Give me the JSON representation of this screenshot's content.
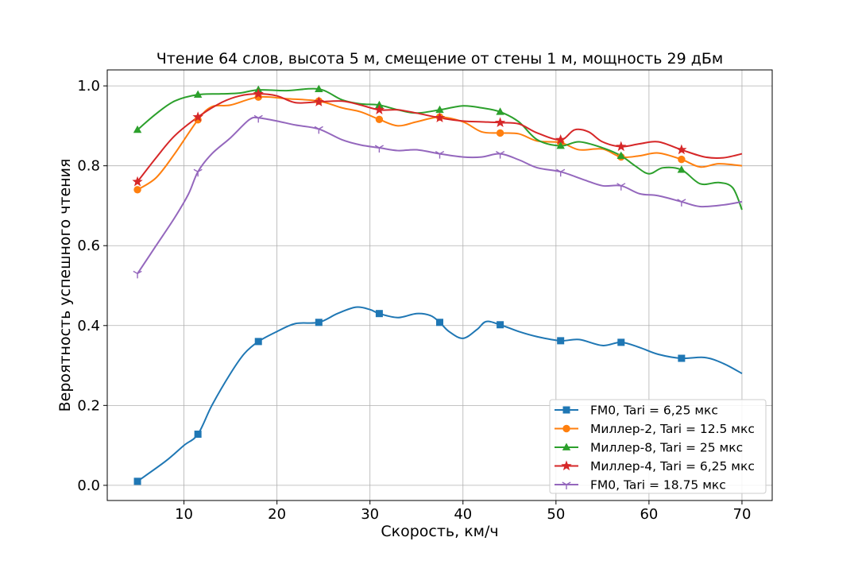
{
  "chart_data": {
    "type": "line",
    "title": "Чтение 64 слов, высота 5 м, смещение от стены 1 м, мощность 29 дБм",
    "xlabel": "Скорость, км/ч",
    "ylabel": "Вероятность успешного чтения",
    "xlim": [
      1.75,
      73.25
    ],
    "ylim": [
      -0.038,
      1.04
    ],
    "xticks": [
      10,
      20,
      30,
      40,
      50,
      60,
      70
    ],
    "yticks": [
      0.0,
      0.2,
      0.4,
      0.6,
      0.8,
      1.0
    ],
    "xtick_labels": [
      "10",
      "20",
      "30",
      "40",
      "50",
      "60",
      "70"
    ],
    "ytick_labels": [
      "0.0",
      "0.2",
      "0.4",
      "0.6",
      "0.8",
      "1.0"
    ],
    "grid": true,
    "legend_position": "lower-right",
    "series": [
      {
        "name": "FM0, Tari = 6,25 мкс",
        "color": "#1f77b4",
        "marker": "square",
        "markers": [
          [
            5,
            0.01
          ],
          [
            11.5,
            0.128
          ],
          [
            18,
            0.36
          ],
          [
            24.5,
            0.408
          ],
          [
            31,
            0.43
          ],
          [
            37.5,
            0.408
          ],
          [
            44,
            0.402
          ],
          [
            50.5,
            0.362
          ],
          [
            57,
            0.358
          ],
          [
            63.5,
            0.318
          ]
        ],
        "curve": [
          [
            5,
            0.01
          ],
          [
            8,
            0.06
          ],
          [
            10,
            0.1
          ],
          [
            11.5,
            0.128
          ],
          [
            13,
            0.2
          ],
          [
            15,
            0.28
          ],
          [
            16.5,
            0.33
          ],
          [
            18,
            0.36
          ],
          [
            20,
            0.385
          ],
          [
            22,
            0.405
          ],
          [
            24.5,
            0.408
          ],
          [
            26.5,
            0.43
          ],
          [
            28.5,
            0.446
          ],
          [
            30,
            0.44
          ],
          [
            31,
            0.43
          ],
          [
            33,
            0.42
          ],
          [
            35,
            0.43
          ],
          [
            36.5,
            0.425
          ],
          [
            37.5,
            0.408
          ],
          [
            38.5,
            0.385
          ],
          [
            40,
            0.368
          ],
          [
            41.5,
            0.39
          ],
          [
            42.5,
            0.41
          ],
          [
            44,
            0.402
          ],
          [
            46,
            0.385
          ],
          [
            48,
            0.372
          ],
          [
            50.5,
            0.362
          ],
          [
            52.5,
            0.365
          ],
          [
            55,
            0.35
          ],
          [
            57,
            0.358
          ],
          [
            59,
            0.345
          ],
          [
            61,
            0.328
          ],
          [
            63.5,
            0.318
          ],
          [
            66,
            0.32
          ],
          [
            68,
            0.305
          ],
          [
            70,
            0.28
          ]
        ]
      },
      {
        "name": "Миллер-2, Tari = 12.5 мкс",
        "color": "#ff7f0e",
        "marker": "circle",
        "markers": [
          [
            5,
            0.74
          ],
          [
            11.5,
            0.915
          ],
          [
            18,
            0.972
          ],
          [
            24.5,
            0.962
          ],
          [
            31,
            0.916
          ],
          [
            37.5,
            0.922
          ],
          [
            44,
            0.882
          ],
          [
            50.5,
            0.858
          ],
          [
            57,
            0.822
          ],
          [
            63.5,
            0.816
          ]
        ],
        "curve": [
          [
            5,
            0.74
          ],
          [
            7,
            0.77
          ],
          [
            9,
            0.83
          ],
          [
            11.5,
            0.915
          ],
          [
            13,
            0.948
          ],
          [
            15,
            0.952
          ],
          [
            18,
            0.972
          ],
          [
            21,
            0.968
          ],
          [
            24.5,
            0.962
          ],
          [
            27,
            0.945
          ],
          [
            29,
            0.935
          ],
          [
            31,
            0.916
          ],
          [
            33,
            0.9
          ],
          [
            35,
            0.91
          ],
          [
            37.5,
            0.922
          ],
          [
            40,
            0.91
          ],
          [
            42,
            0.885
          ],
          [
            44,
            0.882
          ],
          [
            46,
            0.88
          ],
          [
            48,
            0.862
          ],
          [
            50.5,
            0.858
          ],
          [
            52.5,
            0.84
          ],
          [
            55,
            0.842
          ],
          [
            57,
            0.822
          ],
          [
            59,
            0.825
          ],
          [
            61,
            0.832
          ],
          [
            63.5,
            0.816
          ],
          [
            65.5,
            0.797
          ],
          [
            67.5,
            0.805
          ],
          [
            70,
            0.8
          ]
        ]
      },
      {
        "name": "Миллер-8, Tari = 25 мкс",
        "color": "#2ca02c",
        "marker": "triangle",
        "markers": [
          [
            5,
            0.89
          ],
          [
            11.5,
            0.978
          ],
          [
            18,
            0.99
          ],
          [
            24.5,
            0.992
          ],
          [
            31,
            0.952
          ],
          [
            37.5,
            0.94
          ],
          [
            44,
            0.935
          ],
          [
            50.5,
            0.85
          ],
          [
            57,
            0.825
          ],
          [
            63.5,
            0.79
          ]
        ],
        "curve": [
          [
            5,
            0.89
          ],
          [
            7,
            0.93
          ],
          [
            9,
            0.962
          ],
          [
            11.5,
            0.978
          ],
          [
            14,
            0.98
          ],
          [
            16,
            0.982
          ],
          [
            18,
            0.99
          ],
          [
            21,
            0.988
          ],
          [
            24.5,
            0.992
          ],
          [
            27,
            0.965
          ],
          [
            29,
            0.955
          ],
          [
            31,
            0.952
          ],
          [
            33,
            0.94
          ],
          [
            35,
            0.932
          ],
          [
            37.5,
            0.94
          ],
          [
            40,
            0.95
          ],
          [
            42,
            0.945
          ],
          [
            44,
            0.935
          ],
          [
            46,
            0.91
          ],
          [
            48,
            0.865
          ],
          [
            50.5,
            0.85
          ],
          [
            52.5,
            0.86
          ],
          [
            55,
            0.845
          ],
          [
            57,
            0.825
          ],
          [
            58.5,
            0.8
          ],
          [
            60,
            0.78
          ],
          [
            61.5,
            0.795
          ],
          [
            63.5,
            0.79
          ],
          [
            65.5,
            0.755
          ],
          [
            67.5,
            0.758
          ],
          [
            69,
            0.745
          ],
          [
            70,
            0.69
          ]
        ]
      },
      {
        "name": "Миллер-4, Tari = 6,25 мкс",
        "color": "#d62728",
        "marker": "star",
        "markers": [
          [
            5,
            0.76
          ],
          [
            11.5,
            0.922
          ],
          [
            18,
            0.98
          ],
          [
            24.5,
            0.96
          ],
          [
            31,
            0.94
          ],
          [
            37.5,
            0.92
          ],
          [
            44,
            0.908
          ],
          [
            50.5,
            0.865
          ],
          [
            57,
            0.848
          ],
          [
            63.5,
            0.84
          ]
        ],
        "curve": [
          [
            5,
            0.76
          ],
          [
            7,
            0.82
          ],
          [
            9,
            0.875
          ],
          [
            11.5,
            0.922
          ],
          [
            14,
            0.958
          ],
          [
            16,
            0.975
          ],
          [
            18,
            0.98
          ],
          [
            20,
            0.975
          ],
          [
            22,
            0.958
          ],
          [
            24.5,
            0.96
          ],
          [
            27,
            0.962
          ],
          [
            29,
            0.952
          ],
          [
            31,
            0.94
          ],
          [
            33,
            0.94
          ],
          [
            35,
            0.932
          ],
          [
            37.5,
            0.92
          ],
          [
            40,
            0.912
          ],
          [
            42,
            0.91
          ],
          [
            44,
            0.908
          ],
          [
            46,
            0.905
          ],
          [
            48,
            0.882
          ],
          [
            50.5,
            0.865
          ],
          [
            52,
            0.89
          ],
          [
            53.5,
            0.885
          ],
          [
            55,
            0.86
          ],
          [
            57,
            0.848
          ],
          [
            59,
            0.855
          ],
          [
            61,
            0.86
          ],
          [
            63.5,
            0.84
          ],
          [
            66,
            0.822
          ],
          [
            68,
            0.82
          ],
          [
            70,
            0.83
          ]
        ]
      },
      {
        "name": "FM0, Tari = 18.75 мкс",
        "color": "#9467bd",
        "marker": "tri_down",
        "markers": [
          [
            5,
            0.53
          ],
          [
            11.5,
            0.785
          ],
          [
            18,
            0.92
          ],
          [
            24.5,
            0.892
          ],
          [
            31,
            0.845
          ],
          [
            37.5,
            0.83
          ],
          [
            44,
            0.83
          ],
          [
            50.5,
            0.785
          ],
          [
            57,
            0.75
          ],
          [
            63.5,
            0.71
          ]
        ],
        "curve": [
          [
            5,
            0.53
          ],
          [
            7,
            0.6
          ],
          [
            9,
            0.67
          ],
          [
            10.5,
            0.73
          ],
          [
            11.5,
            0.785
          ],
          [
            13,
            0.83
          ],
          [
            15,
            0.87
          ],
          [
            17,
            0.915
          ],
          [
            18,
            0.92
          ],
          [
            20,
            0.912
          ],
          [
            22,
            0.902
          ],
          [
            24.5,
            0.892
          ],
          [
            27,
            0.865
          ],
          [
            29,
            0.852
          ],
          [
            31,
            0.845
          ],
          [
            33,
            0.838
          ],
          [
            35,
            0.84
          ],
          [
            37.5,
            0.83
          ],
          [
            40,
            0.822
          ],
          [
            42,
            0.822
          ],
          [
            44,
            0.83
          ],
          [
            46,
            0.815
          ],
          [
            48,
            0.795
          ],
          [
            50.5,
            0.785
          ],
          [
            53,
            0.765
          ],
          [
            55,
            0.75
          ],
          [
            57,
            0.75
          ],
          [
            59,
            0.73
          ],
          [
            61,
            0.725
          ],
          [
            63.5,
            0.71
          ],
          [
            65.5,
            0.698
          ],
          [
            68,
            0.702
          ],
          [
            70,
            0.71
          ]
        ]
      }
    ]
  }
}
